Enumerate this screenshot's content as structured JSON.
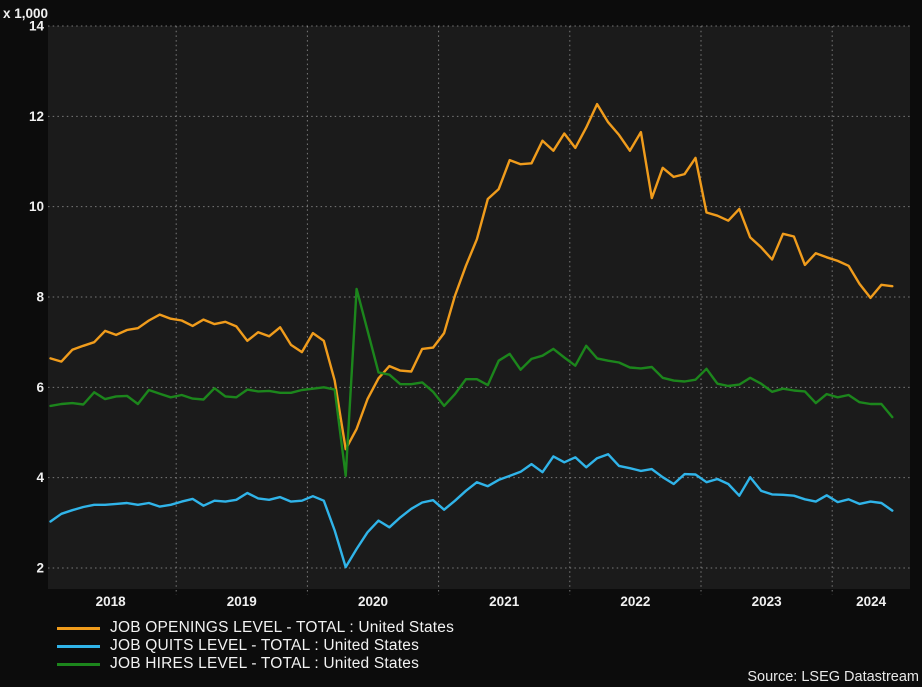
{
  "unit_label": "x 1,000",
  "source_label": "Source: LSEG Datastream",
  "chart_data": {
    "type": "line",
    "title": "",
    "xlabel": "",
    "ylabel": "x 1,000",
    "ylim": [
      2,
      14
    ],
    "y_ticks": [
      2,
      4,
      6,
      8,
      10,
      12,
      14
    ],
    "x_tick_labels": [
      "2018",
      "2019",
      "2020",
      "2021",
      "2022",
      "2023",
      "2024"
    ],
    "x_range_years": [
      2018.0,
      2024.6
    ],
    "grid": "dotted",
    "legend_position": "bottom-left",
    "frequency": "monthly",
    "start_month": "2018-01",
    "end_month": "2024-06",
    "series": [
      {
        "name": "JOB OPENINGS LEVEL - TOTAL : United States",
        "color": "#f09c1c",
        "values": [
          6.64,
          6.57,
          6.83,
          6.92,
          7.0,
          7.25,
          7.16,
          7.27,
          7.31,
          7.48,
          7.61,
          7.52,
          7.48,
          7.36,
          7.5,
          7.4,
          7.45,
          7.35,
          7.03,
          7.22,
          7.13,
          7.33,
          6.94,
          6.78,
          7.2,
          7.03,
          6.15,
          4.63,
          5.08,
          5.74,
          6.2,
          6.47,
          6.37,
          6.35,
          6.85,
          6.88,
          7.2,
          8.03,
          8.69,
          9.28,
          10.17,
          10.39,
          11.03,
          10.94,
          10.96,
          11.46,
          11.24,
          11.62,
          11.3,
          11.75,
          12.27,
          11.87,
          11.59,
          11.24,
          11.65,
          10.19,
          10.86,
          10.66,
          10.72,
          11.08,
          9.87,
          9.8,
          9.69,
          9.95,
          9.32,
          9.1,
          8.83,
          9.4,
          9.34,
          8.71,
          8.97,
          8.88,
          8.8,
          8.69,
          8.29,
          7.98,
          8.27,
          8.24
        ]
      },
      {
        "name": "JOB QUITS LEVEL - TOTAL : United States",
        "color": "#30b4e9",
        "values": [
          3.03,
          3.2,
          3.28,
          3.35,
          3.4,
          3.4,
          3.42,
          3.44,
          3.4,
          3.44,
          3.36,
          3.4,
          3.47,
          3.53,
          3.38,
          3.49,
          3.47,
          3.51,
          3.66,
          3.54,
          3.51,
          3.57,
          3.47,
          3.49,
          3.59,
          3.49,
          2.83,
          2.02,
          2.42,
          2.79,
          3.05,
          2.9,
          3.12,
          3.31,
          3.45,
          3.5,
          3.29,
          3.49,
          3.71,
          3.9,
          3.81,
          3.95,
          4.04,
          4.13,
          4.3,
          4.12,
          4.47,
          4.34,
          4.45,
          4.23,
          4.43,
          4.52,
          4.26,
          4.21,
          4.15,
          4.19,
          4.01,
          3.86,
          4.08,
          4.07,
          3.9,
          3.97,
          3.86,
          3.6,
          4.01,
          3.71,
          3.63,
          3.62,
          3.6,
          3.52,
          3.47,
          3.61,
          3.46,
          3.52,
          3.42,
          3.47,
          3.44,
          3.27
        ]
      },
      {
        "name": "JOB HIRES LEVEL - TOTAL : United States",
        "color": "#1c861c",
        "values": [
          5.59,
          5.63,
          5.65,
          5.62,
          5.89,
          5.74,
          5.8,
          5.81,
          5.63,
          5.94,
          5.86,
          5.78,
          5.83,
          5.75,
          5.73,
          5.98,
          5.8,
          5.78,
          5.95,
          5.91,
          5.92,
          5.88,
          5.88,
          5.94,
          5.97,
          6.0,
          5.95,
          4.04,
          8.18,
          7.26,
          6.33,
          6.28,
          6.07,
          6.07,
          6.11,
          5.9,
          5.59,
          5.85,
          6.18,
          6.18,
          6.05,
          6.59,
          6.74,
          6.39,
          6.63,
          6.7,
          6.85,
          6.66,
          6.48,
          6.92,
          6.64,
          6.59,
          6.55,
          6.44,
          6.42,
          6.45,
          6.21,
          6.15,
          6.13,
          6.17,
          6.41,
          6.08,
          6.03,
          6.06,
          6.21,
          6.08,
          5.9,
          5.97,
          5.93,
          5.91,
          5.65,
          5.85,
          5.78,
          5.83,
          5.67,
          5.63,
          5.63,
          5.34
        ]
      }
    ]
  }
}
